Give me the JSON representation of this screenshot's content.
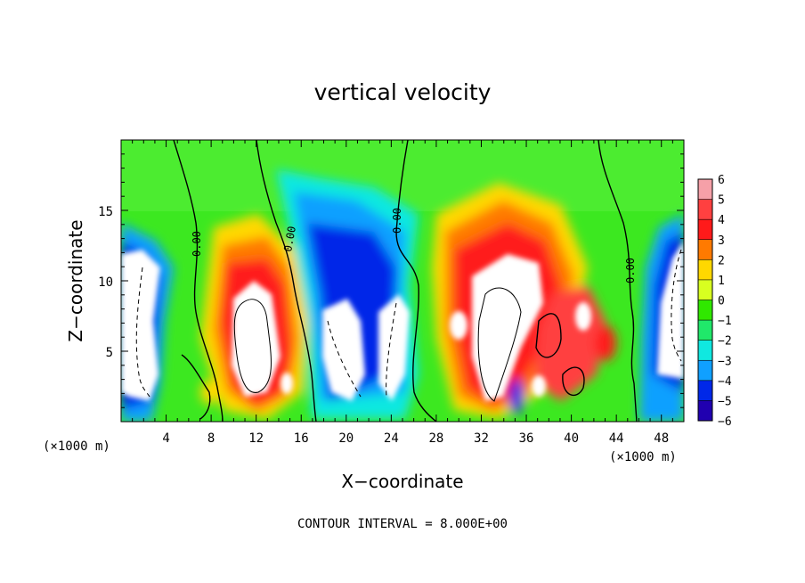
{
  "chart_data": {
    "type": "heatmap",
    "title": "vertical velocity",
    "xlabel": "X−coordinate",
    "ylabel": "Z−coordinate",
    "x_unit_label": "(×1000 m)",
    "y_unit_label": "(×1000 m)",
    "xlim": [
      0,
      50
    ],
    "ylim": [
      0,
      20
    ],
    "x_ticks": [
      4,
      8,
      12,
      16,
      20,
      24,
      28,
      32,
      36,
      40,
      44,
      48
    ],
    "y_ticks": [
      5,
      10,
      15
    ],
    "colorbar": {
      "levels": [
        6,
        5,
        4,
        3,
        2,
        1,
        0,
        -1,
        -2,
        -3,
        -4,
        -5,
        -6
      ],
      "labels": [
        "6",
        "5",
        "4",
        "3",
        "2",
        "1",
        "0",
        "−1",
        "−2",
        "−3",
        "−4",
        "−5",
        "−6"
      ],
      "colors": [
        "#f6a0a8",
        "#ff4040",
        "#ff1a1a",
        "#ff7a00",
        "#ffd800",
        "#d8ff20",
        "#30e800",
        "#20e86a",
        "#10e8e0",
        "#10a0ff",
        "#0028e8",
        "#2000b0",
        "#8000a8"
      ],
      "range": [
        -6,
        6
      ]
    },
    "contour_interval_text": "CONTOUR INTERVAL = 8.000E+00",
    "contour_labels": [
      "0.00",
      "0.00",
      "0.00",
      "0.00"
    ],
    "updrafts": [
      {
        "x": 12,
        "z": 6.5,
        "strength": 10
      },
      {
        "x": 33.5,
        "z": 8,
        "strength": 10
      },
      {
        "x": 40.5,
        "z": 6.5,
        "strength": 5
      },
      {
        "x": 14,
        "z": 3.5,
        "strength": 6
      },
      {
        "x": 36,
        "z": 3,
        "strength": 5
      },
      {
        "x": 29.5,
        "z": 7,
        "strength": 7
      }
    ],
    "downdrafts": [
      {
        "x": 1.5,
        "z": 7,
        "strength": -10
      },
      {
        "x": 48.8,
        "z": 7,
        "strength": -10
      },
      {
        "x": 19.5,
        "z": 5,
        "strength": -10
      },
      {
        "x": 23.5,
        "z": 5.5,
        "strength": -10
      }
    ]
  }
}
